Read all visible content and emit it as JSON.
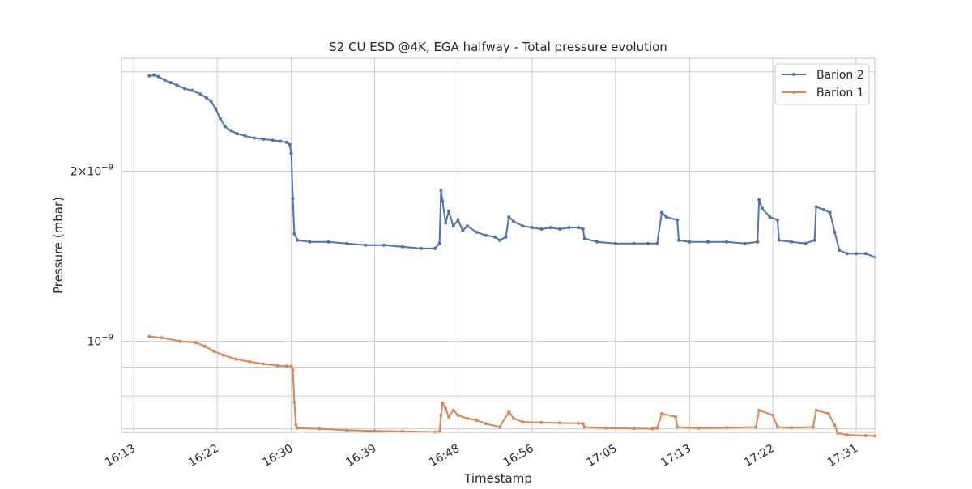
{
  "chart_data": {
    "type": "line",
    "title": "S2 CU ESD @4K, EGA halfway - Total pressure evolution",
    "xlabel": "Timestamp",
    "ylabel": "Pressure (mbar)",
    "xlim": [
      "16:11:40",
      "17:33:00"
    ],
    "ylim": [
      6.9e-10,
      3.17e-09
    ],
    "y_scale": "log",
    "grid": true,
    "legend_position": "top-right",
    "x_ticks": [
      "16:13",
      "16:22",
      "16:30",
      "16:39",
      "16:48",
      "16:56",
      "17:05",
      "17:13",
      "17:22",
      "17:31"
    ],
    "y_ticks": [
      {
        "value": 2e-09,
        "base": "2×10",
        "exp": "−9"
      },
      {
        "value": 1e-09,
        "base": "10",
        "exp": "−9"
      }
    ],
    "y_minor_ticks": [
      9e-10,
      8e-10,
      7e-10,
      3e-09
    ],
    "series": [
      {
        "name": "Barion 2",
        "color": "#4c72b0",
        "points": [
          [
            "16:14:40",
            2.95e-09
          ],
          [
            "16:15:10",
            2.96e-09
          ],
          [
            "16:15:40",
            2.94e-09
          ],
          [
            "16:16:20",
            2.9e-09
          ],
          [
            "16:17:00",
            2.87e-09
          ],
          [
            "16:17:40",
            2.84e-09
          ],
          [
            "16:18:30",
            2.8e-09
          ],
          [
            "16:19:20",
            2.78e-09
          ],
          [
            "16:20:10",
            2.74e-09
          ],
          [
            "16:20:50",
            2.7e-09
          ],
          [
            "16:21:20",
            2.66e-09
          ],
          [
            "16:21:50",
            2.58e-09
          ],
          [
            "16:22:20",
            2.48e-09
          ],
          [
            "16:22:50",
            2.4e-09
          ],
          [
            "16:23:30",
            2.36e-09
          ],
          [
            "16:24:10",
            2.33e-09
          ],
          [
            "16:25:00",
            2.31e-09
          ],
          [
            "16:26:00",
            2.29e-09
          ],
          [
            "16:27:00",
            2.28e-09
          ],
          [
            "16:28:00",
            2.27e-09
          ],
          [
            "16:28:50",
            2.26e-09
          ],
          [
            "16:29:30",
            2.25e-09
          ],
          [
            "16:29:50",
            2.23e-09
          ],
          [
            "16:30:00",
            2.15e-09
          ],
          [
            "16:30:10",
            1.79e-09
          ],
          [
            "16:30:20",
            1.55e-09
          ],
          [
            "16:30:40",
            1.51e-09
          ],
          [
            "16:32:00",
            1.5e-09
          ],
          [
            "16:34:00",
            1.5e-09
          ],
          [
            "16:36:00",
            1.49e-09
          ],
          [
            "16:38:00",
            1.48e-09
          ],
          [
            "16:40:00",
            1.48e-09
          ],
          [
            "16:42:00",
            1.47e-09
          ],
          [
            "16:44:00",
            1.46e-09
          ],
          [
            "16:45:30",
            1.46e-09
          ],
          [
            "16:46:00",
            1.49e-09
          ],
          [
            "16:46:10",
            1.85e-09
          ],
          [
            "16:46:20",
            1.77e-09
          ],
          [
            "16:46:40",
            1.62e-09
          ],
          [
            "16:47:00",
            1.7e-09
          ],
          [
            "16:47:30",
            1.6e-09
          ],
          [
            "16:48:00",
            1.64e-09
          ],
          [
            "16:48:30",
            1.57e-09
          ],
          [
            "16:49:00",
            1.6e-09
          ],
          [
            "16:50:00",
            1.56e-09
          ],
          [
            "16:51:00",
            1.54e-09
          ],
          [
            "16:52:00",
            1.53e-09
          ],
          [
            "16:52:30",
            1.51e-09
          ],
          [
            "16:53:10",
            1.53e-09
          ],
          [
            "16:53:30",
            1.66e-09
          ],
          [
            "16:54:00",
            1.63e-09
          ],
          [
            "16:55:00",
            1.6e-09
          ],
          [
            "16:56:00",
            1.59e-09
          ],
          [
            "16:57:00",
            1.58e-09
          ],
          [
            "16:58:00",
            1.59e-09
          ],
          [
            "16:59:00",
            1.58e-09
          ],
          [
            "17:00:00",
            1.59e-09
          ],
          [
            "17:01:00",
            1.59e-09
          ],
          [
            "17:01:30",
            1.58e-09
          ],
          [
            "17:01:40",
            1.52e-09
          ],
          [
            "17:03:00",
            1.5e-09
          ],
          [
            "17:05:00",
            1.49e-09
          ],
          [
            "17:07:00",
            1.49e-09
          ],
          [
            "17:08:30",
            1.49e-09
          ],
          [
            "17:09:30",
            1.49e-09
          ],
          [
            "17:10:00",
            1.69e-09
          ],
          [
            "17:10:30",
            1.66e-09
          ],
          [
            "17:11:40",
            1.64e-09
          ],
          [
            "17:11:50",
            1.51e-09
          ],
          [
            "17:13:00",
            1.5e-09
          ],
          [
            "17:15:00",
            1.5e-09
          ],
          [
            "17:17:00",
            1.5e-09
          ],
          [
            "17:19:00",
            1.49e-09
          ],
          [
            "17:20:20",
            1.5e-09
          ],
          [
            "17:20:30",
            1.78e-09
          ],
          [
            "17:20:50",
            1.72e-09
          ],
          [
            "17:21:40",
            1.66e-09
          ],
          [
            "17:22:30",
            1.64e-09
          ],
          [
            "17:22:40",
            1.51e-09
          ],
          [
            "17:24:00",
            1.5e-09
          ],
          [
            "17:25:30",
            1.49e-09
          ],
          [
            "17:26:30",
            1.51e-09
          ],
          [
            "17:26:40",
            1.73e-09
          ],
          [
            "17:27:30",
            1.71e-09
          ],
          [
            "17:28:10",
            1.69e-09
          ],
          [
            "17:28:40",
            1.56e-09
          ],
          [
            "17:29:10",
            1.45e-09
          ],
          [
            "17:30:00",
            1.43e-09
          ],
          [
            "17:31:00",
            1.43e-09
          ],
          [
            "17:32:00",
            1.43e-09
          ],
          [
            "17:33:00",
            1.41e-09
          ]
        ]
      },
      {
        "name": "Barion 1",
        "color": "#dd8452",
        "points": [
          [
            "16:14:40",
            1.02e-09
          ],
          [
            "16:16:00",
            1.015e-09
          ],
          [
            "16:18:00",
            1e-09
          ],
          [
            "16:19:40",
            9.95e-10
          ],
          [
            "16:20:40",
            9.8e-10
          ],
          [
            "16:21:40",
            9.6e-10
          ],
          [
            "16:22:40",
            9.45e-10
          ],
          [
            "16:24:00",
            9.3e-10
          ],
          [
            "16:25:30",
            9.2e-10
          ],
          [
            "16:27:00",
            9.12e-10
          ],
          [
            "16:28:30",
            9.05e-10
          ],
          [
            "16:29:30",
            9.04e-10
          ],
          [
            "16:30:00",
            9.03e-10
          ],
          [
            "16:30:10",
            8.9e-10
          ],
          [
            "16:30:20",
            7.8e-10
          ],
          [
            "16:30:30",
            7.12e-10
          ],
          [
            "16:30:40",
            7.02e-10
          ],
          [
            "16:33:00",
            7e-10
          ],
          [
            "16:36:00",
            6.96e-10
          ],
          [
            "16:39:00",
            6.94e-10
          ],
          [
            "16:42:00",
            6.93e-10
          ],
          [
            "16:45:30",
            6.91e-10
          ],
          [
            "16:46:00",
            6.92e-10
          ],
          [
            "16:46:10",
            7.4e-10
          ],
          [
            "16:46:20",
            7.78e-10
          ],
          [
            "16:46:40",
            7.6e-10
          ],
          [
            "16:47:00",
            7.35e-10
          ],
          [
            "16:47:30",
            7.55e-10
          ],
          [
            "16:48:00",
            7.4e-10
          ],
          [
            "16:49:00",
            7.3e-10
          ],
          [
            "16:50:00",
            7.25e-10
          ],
          [
            "16:51:00",
            7.15e-10
          ],
          [
            "16:52:30",
            7.05e-10
          ],
          [
            "16:53:30",
            7.5e-10
          ],
          [
            "16:54:00",
            7.3e-10
          ],
          [
            "16:55:00",
            7.2e-10
          ],
          [
            "16:57:00",
            7.18e-10
          ],
          [
            "16:59:00",
            7.17e-10
          ],
          [
            "17:01:00",
            7.16e-10
          ],
          [
            "17:01:30",
            7.15e-10
          ],
          [
            "17:01:40",
            7.05e-10
          ],
          [
            "17:04:00",
            7.02e-10
          ],
          [
            "17:07:00",
            7.01e-10
          ],
          [
            "17:09:00",
            7e-10
          ],
          [
            "17:09:30",
            7.02e-10
          ],
          [
            "17:10:00",
            7.45e-10
          ],
          [
            "17:11:30",
            7.35e-10
          ],
          [
            "17:11:40",
            7.05e-10
          ],
          [
            "17:14:00",
            7.02e-10
          ],
          [
            "17:17:00",
            7.03e-10
          ],
          [
            "17:20:10",
            7.05e-10
          ],
          [
            "17:20:30",
            7.55e-10
          ],
          [
            "17:22:00",
            7.4e-10
          ],
          [
            "17:22:30",
            7.05e-10
          ],
          [
            "17:24:00",
            7.03e-10
          ],
          [
            "17:26:20",
            7.05e-10
          ],
          [
            "17:26:40",
            7.55e-10
          ],
          [
            "17:28:00",
            7.45e-10
          ],
          [
            "17:28:40",
            7.1e-10
          ],
          [
            "17:29:00",
            6.88e-10
          ],
          [
            "17:30:00",
            6.83e-10
          ],
          [
            "17:32:00",
            6.81e-10
          ],
          [
            "17:33:00",
            6.8e-10
          ]
        ]
      }
    ]
  }
}
